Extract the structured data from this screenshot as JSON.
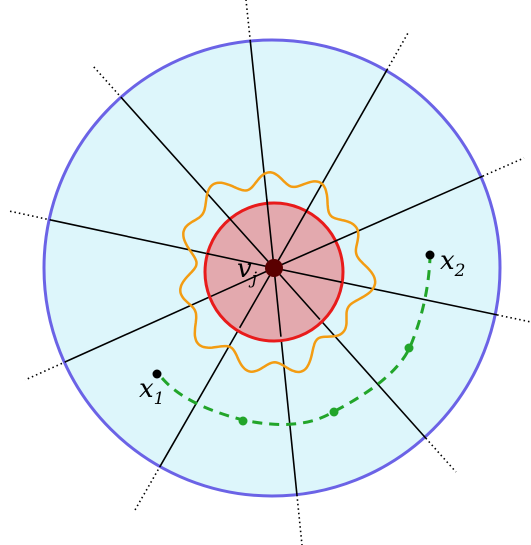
{
  "labels": {
    "vj": {
      "base": "v",
      "sub": "j"
    },
    "x1": {
      "base": "x",
      "sub": "1"
    },
    "x2": {
      "base": "x",
      "sub": "2"
    }
  },
  "colors": {
    "outer_fill": "#DDF6FB",
    "outer_stroke": "#6B63E6",
    "inner_fill": "#E3A9AE",
    "inner_stroke": "#E81B1B",
    "wiggle": "#F39C12",
    "path": "#22A52A",
    "center": "#5A0000",
    "ray": "#000000"
  }
}
